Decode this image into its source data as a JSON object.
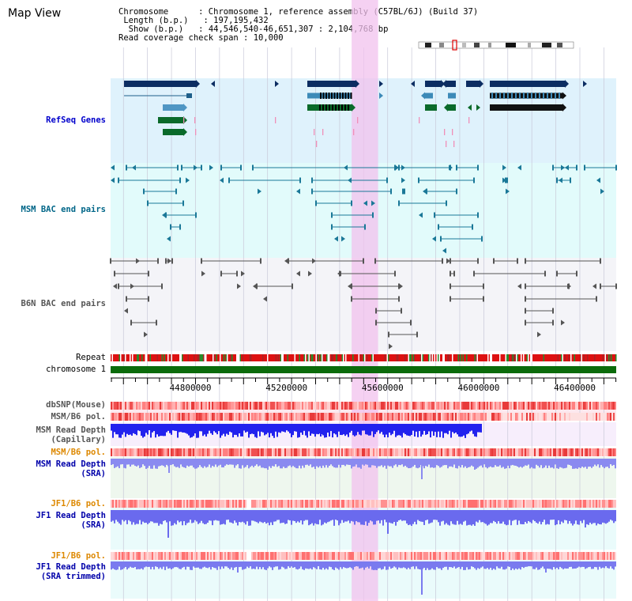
{
  "map_view": {
    "title": "Map View",
    "info": {
      "chromosome_key": "Chromosome",
      "chromosome_value": "Chromosome 1, reference assembly (C57BL/6J) (Build 37)",
      "length_key": "Length (b.p.)",
      "length_value": "197,195,432",
      "show_key": "Show (b.p.)",
      "show_value": "44,546,540-46,651,307 : 2,104,768 bp",
      "coverage_key": "Read coverage check span",
      "coverage_value": "10,000"
    },
    "axis": {
      "start": 44546540,
      "end": 46651307,
      "ticks": [
        44800000,
        45200000,
        45600000,
        46000000,
        46400000
      ]
    },
    "highlight": {
      "start": 45550000,
      "end": 45660000
    },
    "tracks": [
      {
        "key": "refseq",
        "label": "RefSeq Genes",
        "color": "#0000cc",
        "bg": "#dff2fc"
      },
      {
        "key": "msm_bac",
        "label": "MSM BAC end pairs",
        "color": "#006688",
        "bg": "#e2fbfb"
      },
      {
        "key": "b6n_bac",
        "label": "B6N BAC end pairs",
        "color": "#555555",
        "bg": "#f4f4f8"
      },
      {
        "key": "repeat",
        "label": "Repeat",
        "color": "#000000"
      },
      {
        "key": "chromosome",
        "label": "chromosome 1",
        "color": "#000000"
      },
      {
        "key": "dbsnp",
        "label": "dbSNP(Mouse)",
        "color": "#555555"
      },
      {
        "key": "msm_pol",
        "label": "MSM/B6 pol.",
        "color": "#555555"
      },
      {
        "key": "msm_depth_cap",
        "label": "MSM Read Depth\n(Capillary)",
        "color": "#555555"
      },
      {
        "key": "msm_pol_2",
        "label": "MSM/B6 pol.",
        "color": "#dd8800"
      },
      {
        "key": "msm_depth_sra",
        "label": "MSM Read Depth\n(SRA)",
        "color": "#0000aa"
      },
      {
        "key": "jf1_pol",
        "label": "JF1/B6 pol.",
        "color": "#dd8800"
      },
      {
        "key": "jf1_depth_sra",
        "label": "JF1 Read Depth\n(SRA)",
        "color": "#0000aa"
      },
      {
        "key": "jf1_pol_2",
        "label": "JF1/B6 pol.",
        "color": "#dd8800"
      },
      {
        "key": "jf1_depth_trim",
        "label": "JF1 Read Depth\n(SRA trimmed)",
        "color": "#0000aa"
      }
    ]
  }
}
